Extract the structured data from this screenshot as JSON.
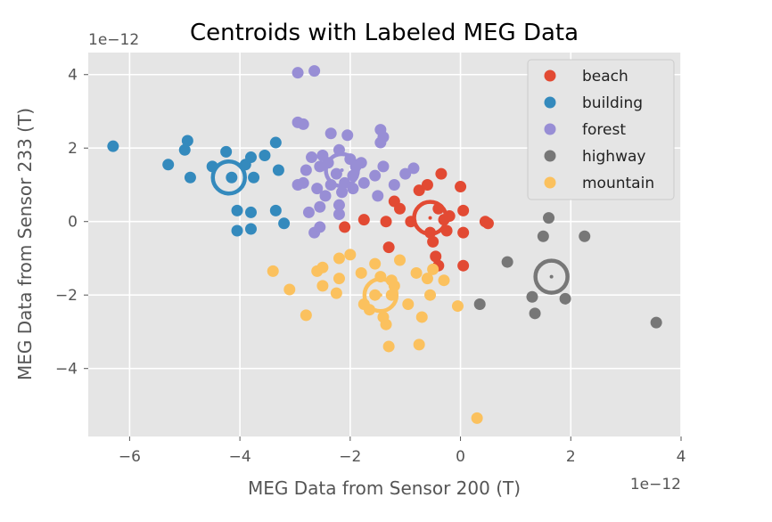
{
  "chart_data": {
    "type": "scatter",
    "title": "Centroids with Labeled MEG Data",
    "xlabel": "MEG Data from Sensor 200 (T)",
    "ylabel": "MEG Data from Sensor 233 (T)",
    "x_offset_label": "1e−12",
    "y_offset_label": "1e−12",
    "xlim": [
      -6.75,
      4.0
    ],
    "ylim": [
      -5.85,
      4.6
    ],
    "xticks": [
      -6,
      -4,
      -2,
      0,
      2,
      4
    ],
    "yticks": [
      -4,
      -2,
      0,
      2,
      4
    ],
    "xtick_labels": [
      "−6",
      "−4",
      "−2",
      "0",
      "2",
      "4"
    ],
    "ytick_labels": [
      "−4",
      "−2",
      "0",
      "2",
      "4"
    ],
    "grid": true,
    "legend_position": "top-right",
    "background": "#e5e5e5",
    "series": [
      {
        "name": "beach",
        "color": "#e24a33",
        "centroid": [
          -0.55,
          0.1
        ],
        "points": [
          [
            -2.1,
            -0.15
          ],
          [
            -1.75,
            0.05
          ],
          [
            -1.2,
            0.55
          ],
          [
            -1.1,
            0.35
          ],
          [
            -1.35,
            0.0
          ],
          [
            -0.9,
            0.0
          ],
          [
            -0.75,
            0.85
          ],
          [
            -0.6,
            1.0
          ],
          [
            -0.4,
            0.35
          ],
          [
            -0.35,
            1.3
          ],
          [
            -0.3,
            0.05
          ],
          [
            -0.2,
            0.15
          ],
          [
            -0.25,
            -0.25
          ],
          [
            0.0,
            0.95
          ],
          [
            0.05,
            0.3
          ],
          [
            0.05,
            -0.3
          ],
          [
            0.5,
            -0.05
          ],
          [
            0.45,
            0.0
          ],
          [
            -0.5,
            -0.55
          ],
          [
            -0.45,
            -0.95
          ],
          [
            -0.4,
            -1.2
          ],
          [
            0.05,
            -1.2
          ],
          [
            -1.3,
            -0.7
          ],
          [
            -0.55,
            -0.3
          ]
        ]
      },
      {
        "name": "building",
        "color": "#348abd",
        "centroid": [
          -4.2,
          1.2
        ],
        "points": [
          [
            -6.3,
            2.05
          ],
          [
            -5.3,
            1.55
          ],
          [
            -5.0,
            1.95
          ],
          [
            -4.95,
            2.2
          ],
          [
            -4.9,
            1.2
          ],
          [
            -4.5,
            1.5
          ],
          [
            -4.25,
            1.9
          ],
          [
            -4.15,
            1.2
          ],
          [
            -3.9,
            1.55
          ],
          [
            -3.8,
            1.75
          ],
          [
            -3.75,
            1.2
          ],
          [
            -3.55,
            1.8
          ],
          [
            -3.35,
            2.15
          ],
          [
            -3.3,
            1.4
          ],
          [
            -4.05,
            0.3
          ],
          [
            -3.8,
            0.25
          ],
          [
            -3.35,
            0.3
          ],
          [
            -4.05,
            -0.25
          ],
          [
            -3.8,
            -0.2
          ],
          [
            -3.2,
            -0.05
          ]
        ]
      },
      {
        "name": "forest",
        "color": "#988ed5",
        "centroid": [
          -2.15,
          1.4
        ],
        "points": [
          [
            -2.95,
            4.05
          ],
          [
            -2.65,
            4.1
          ],
          [
            -2.95,
            2.7
          ],
          [
            -2.85,
            2.65
          ],
          [
            -2.35,
            2.4
          ],
          [
            -2.05,
            2.35
          ],
          [
            -1.45,
            2.5
          ],
          [
            -1.4,
            2.3
          ],
          [
            -1.45,
            2.15
          ],
          [
            -2.2,
            1.95
          ],
          [
            -2.5,
            1.8
          ],
          [
            -2.7,
            1.75
          ],
          [
            -2.8,
            1.4
          ],
          [
            -2.55,
            1.5
          ],
          [
            -2.4,
            1.6
          ],
          [
            -2.25,
            1.3
          ],
          [
            -2.0,
            1.7
          ],
          [
            -1.9,
            1.5
          ],
          [
            -1.8,
            1.6
          ],
          [
            -1.95,
            1.25
          ],
          [
            -2.1,
            1.05
          ],
          [
            -2.35,
            1.0
          ],
          [
            -2.6,
            0.9
          ],
          [
            -2.45,
            0.7
          ],
          [
            -2.2,
            0.45
          ],
          [
            -2.2,
            0.2
          ],
          [
            -2.55,
            0.4
          ],
          [
            -2.75,
            0.25
          ],
          [
            -2.65,
            -0.3
          ],
          [
            -2.55,
            -0.15
          ],
          [
            -2.85,
            1.05
          ],
          [
            -2.95,
            1.0
          ],
          [
            -1.95,
            0.9
          ],
          [
            -1.75,
            1.05
          ],
          [
            -1.55,
            1.25
          ],
          [
            -1.4,
            1.5
          ],
          [
            -1.2,
            1.0
          ],
          [
            -1.5,
            0.7
          ],
          [
            -1.0,
            1.3
          ],
          [
            -0.85,
            1.45
          ],
          [
            -2.15,
            0.8
          ]
        ]
      },
      {
        "name": "highway",
        "color": "#777777",
        "centroid": [
          1.65,
          -1.5
        ],
        "points": [
          [
            1.6,
            0.1
          ],
          [
            1.5,
            -0.4
          ],
          [
            2.25,
            -0.4
          ],
          [
            0.85,
            -1.1
          ],
          [
            1.3,
            -2.05
          ],
          [
            1.35,
            -2.5
          ],
          [
            1.9,
            -2.1
          ],
          [
            0.35,
            -2.25
          ],
          [
            3.55,
            -2.75
          ]
        ]
      },
      {
        "name": "mountain",
        "color": "#fbc15e",
        "centroid": [
          -1.45,
          -2.0
        ],
        "points": [
          [
            -3.4,
            -1.35
          ],
          [
            -3.1,
            -1.85
          ],
          [
            -2.8,
            -2.55
          ],
          [
            -2.6,
            -1.35
          ],
          [
            -2.5,
            -1.25
          ],
          [
            -2.5,
            -1.75
          ],
          [
            -2.2,
            -1.55
          ],
          [
            -2.25,
            -1.95
          ],
          [
            -2.2,
            -1.0
          ],
          [
            -2.0,
            -0.9
          ],
          [
            -1.8,
            -1.4
          ],
          [
            -1.65,
            -2.4
          ],
          [
            -1.55,
            -2.0
          ],
          [
            -1.55,
            -1.15
          ],
          [
            -1.45,
            -1.5
          ],
          [
            -1.4,
            -2.6
          ],
          [
            -1.35,
            -2.8
          ],
          [
            -1.25,
            -1.6
          ],
          [
            -1.25,
            -2.0
          ],
          [
            -1.3,
            -3.4
          ],
          [
            -1.1,
            -1.05
          ],
          [
            -0.95,
            -2.25
          ],
          [
            -0.8,
            -1.4
          ],
          [
            -0.75,
            -3.35
          ],
          [
            -0.7,
            -2.6
          ],
          [
            -0.6,
            -1.55
          ],
          [
            -0.55,
            -2.0
          ],
          [
            -0.5,
            -1.3
          ],
          [
            -0.3,
            -1.6
          ],
          [
            -0.05,
            -2.3
          ],
          [
            0.3,
            -5.35
          ],
          [
            -1.75,
            -2.25
          ],
          [
            -1.2,
            -1.75
          ]
        ]
      }
    ]
  }
}
